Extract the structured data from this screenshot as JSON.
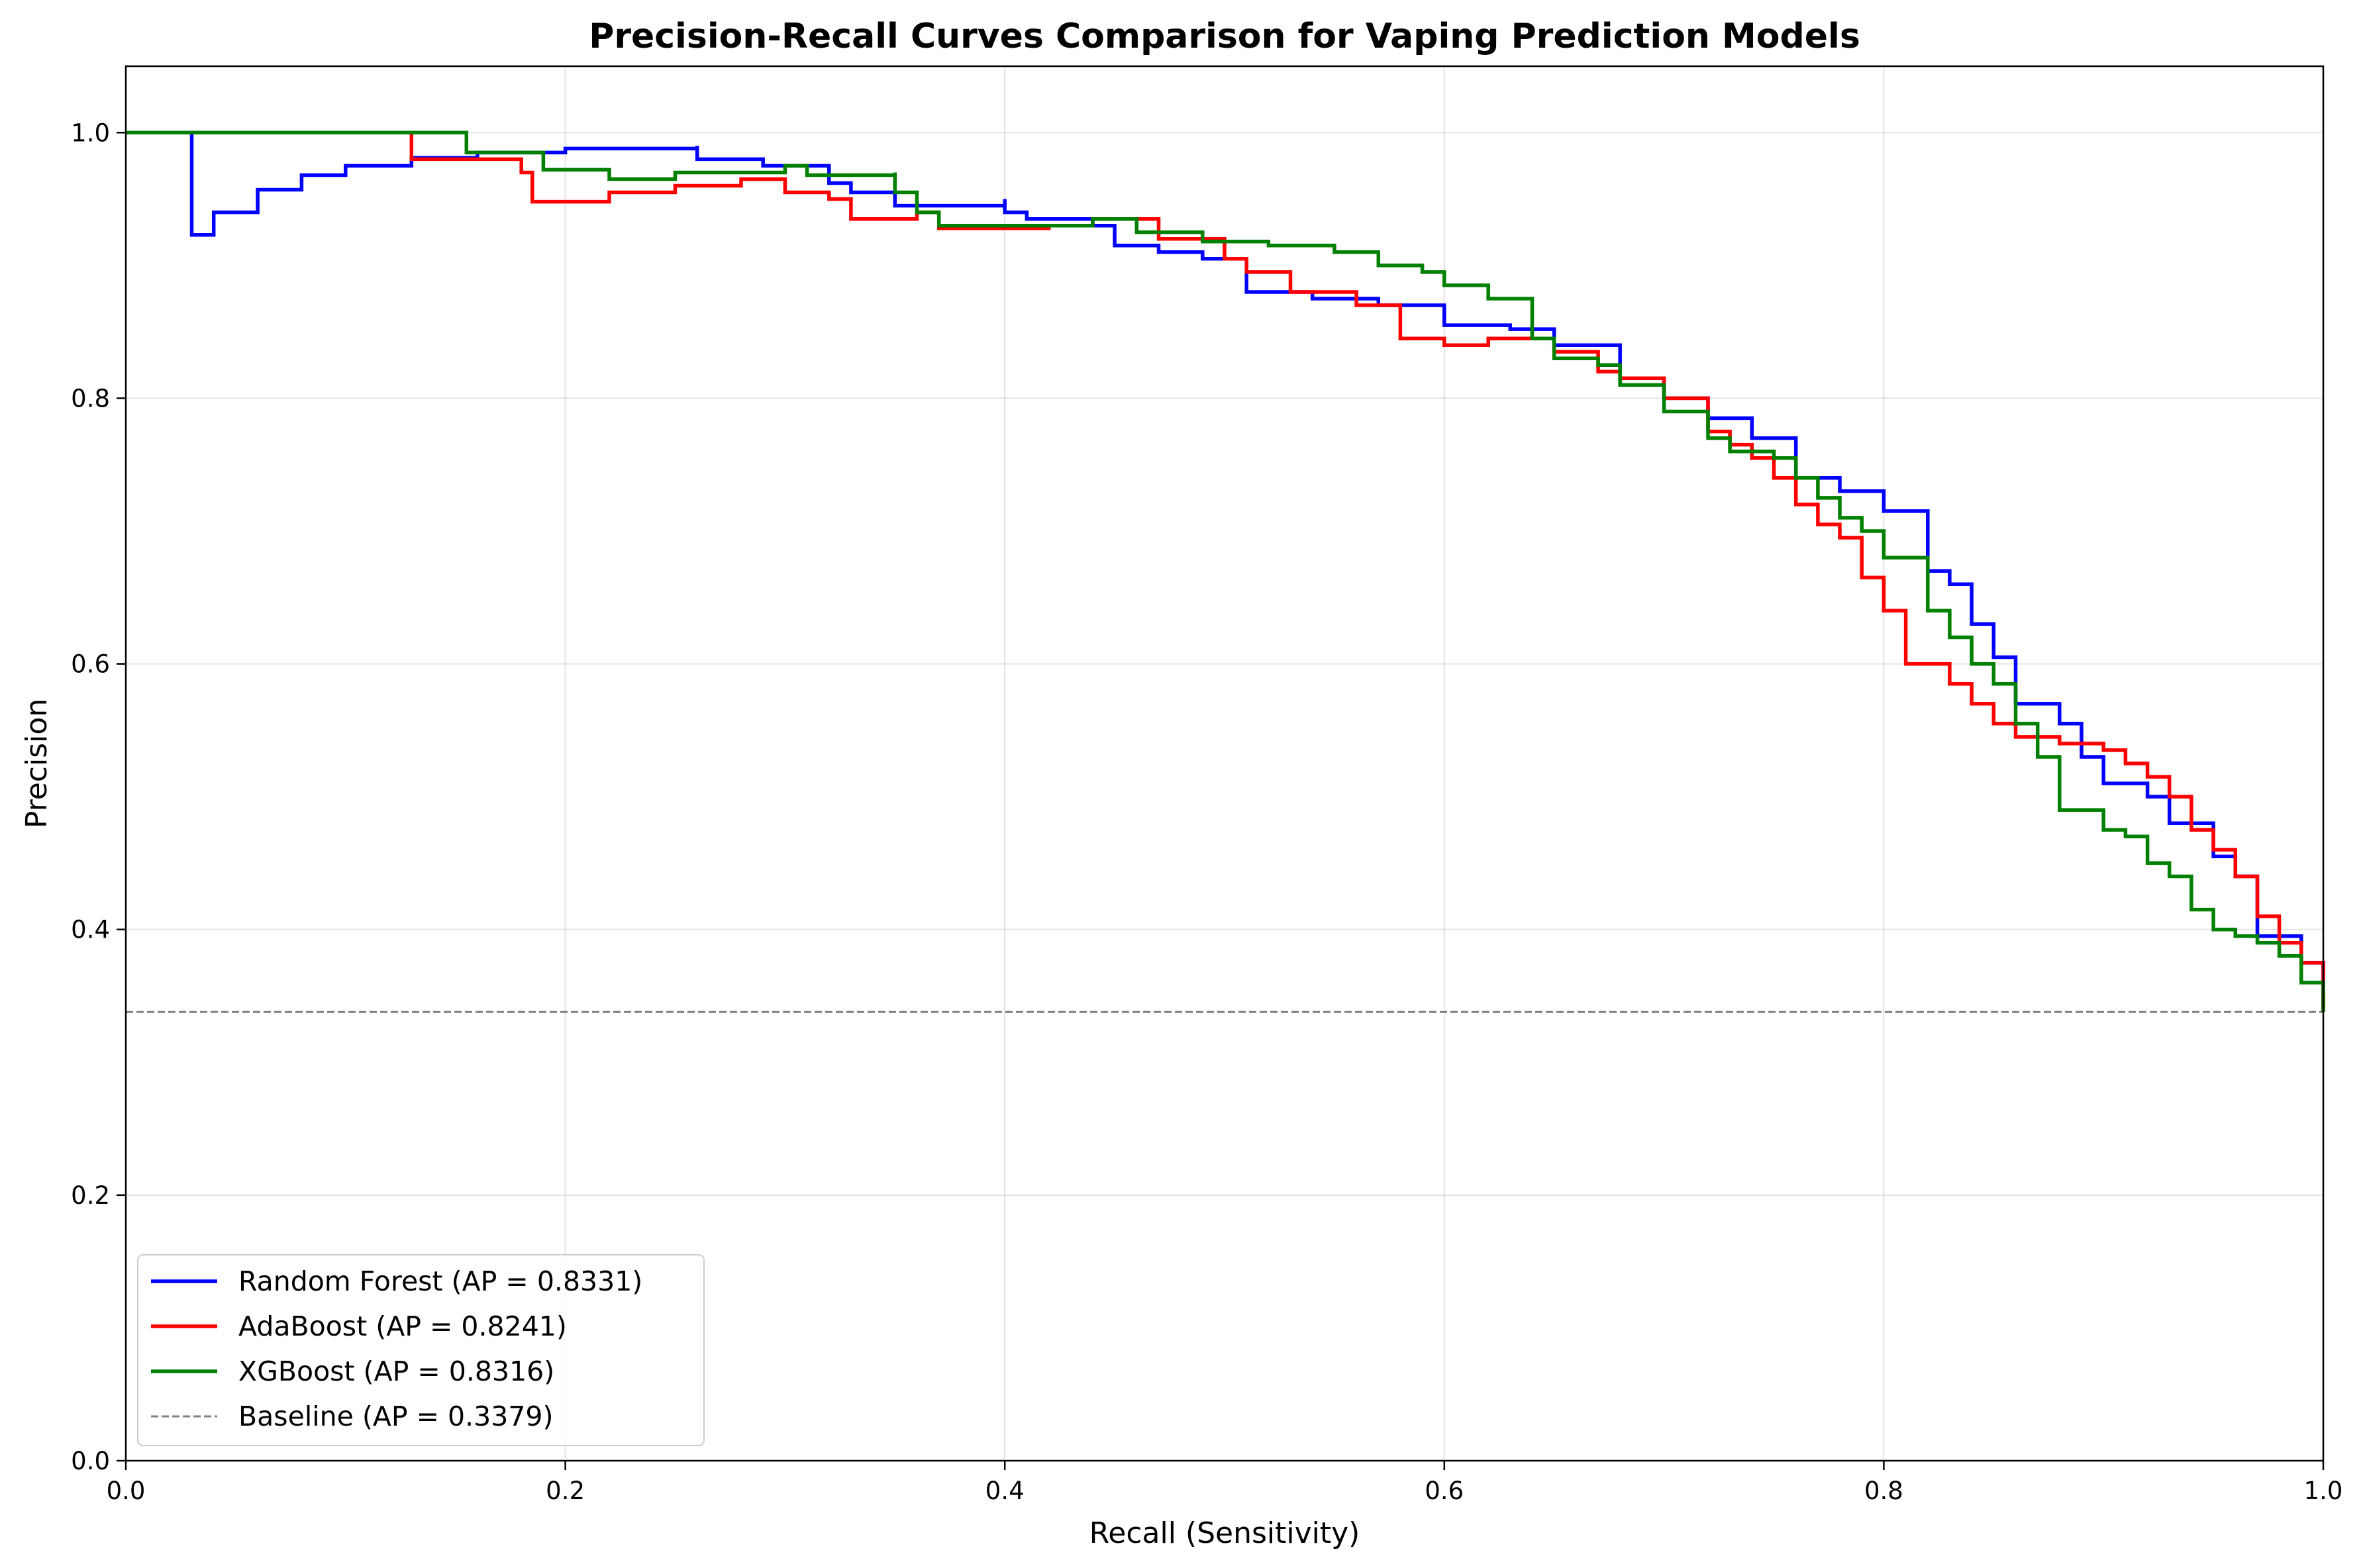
{
  "chart_data": {
    "type": "line",
    "title": "Precision-Recall Curves Comparison for Vaping Prediction Models",
    "xlabel": "Recall (Sensitivity)",
    "ylabel": "Precision",
    "xlim": [
      0.0,
      1.0
    ],
    "ylim": [
      0.0,
      1.05
    ],
    "xticks": [
      "0.0",
      "0.2",
      "0.4",
      "0.6",
      "0.8",
      "1.0"
    ],
    "yticks": [
      "0.0",
      "0.2",
      "0.4",
      "0.6",
      "0.8",
      "1.0"
    ],
    "grid": true,
    "legend_position": "lower-left",
    "series": [
      {
        "name": "Random Forest (AP = 0.8331)",
        "color": "#0000ff",
        "style": "step",
        "points": [
          [
            0.0,
            1.0
          ],
          [
            0.03,
            1.0
          ],
          [
            0.03,
            0.923
          ],
          [
            0.04,
            0.94
          ],
          [
            0.06,
            0.957
          ],
          [
            0.08,
            0.968
          ],
          [
            0.1,
            0.975
          ],
          [
            0.13,
            0.981
          ],
          [
            0.16,
            0.985
          ],
          [
            0.2,
            0.988
          ],
          [
            0.26,
            0.99
          ],
          [
            0.26,
            0.98
          ],
          [
            0.29,
            0.98
          ],
          [
            0.29,
            0.975
          ],
          [
            0.32,
            0.975
          ],
          [
            0.32,
            0.962
          ],
          [
            0.33,
            0.962
          ],
          [
            0.33,
            0.955
          ],
          [
            0.35,
            0.955
          ],
          [
            0.35,
            0.945
          ],
          [
            0.37,
            0.945
          ],
          [
            0.4,
            0.95
          ],
          [
            0.4,
            0.94
          ],
          [
            0.41,
            0.935
          ],
          [
            0.44,
            0.93
          ],
          [
            0.45,
            0.915
          ],
          [
            0.47,
            0.91
          ],
          [
            0.49,
            0.905
          ],
          [
            0.51,
            0.902
          ],
          [
            0.51,
            0.88
          ],
          [
            0.54,
            0.875
          ],
          [
            0.57,
            0.87
          ],
          [
            0.6,
            0.855
          ],
          [
            0.63,
            0.852
          ],
          [
            0.65,
            0.84
          ],
          [
            0.68,
            0.815
          ],
          [
            0.7,
            0.8
          ],
          [
            0.72,
            0.785
          ],
          [
            0.74,
            0.77
          ],
          [
            0.76,
            0.74
          ],
          [
            0.78,
            0.73
          ],
          [
            0.8,
            0.715
          ],
          [
            0.82,
            0.69
          ],
          [
            0.82,
            0.67
          ],
          [
            0.83,
            0.66
          ],
          [
            0.84,
            0.63
          ],
          [
            0.85,
            0.605
          ],
          [
            0.86,
            0.57
          ],
          [
            0.88,
            0.555
          ],
          [
            0.89,
            0.53
          ],
          [
            0.9,
            0.51
          ],
          [
            0.92,
            0.5
          ],
          [
            0.93,
            0.48
          ],
          [
            0.95,
            0.455
          ],
          [
            0.96,
            0.44
          ],
          [
            0.97,
            0.42
          ],
          [
            0.97,
            0.395
          ],
          [
            0.99,
            0.375
          ],
          [
            1.0,
            0.35
          ],
          [
            1.0,
            0.338
          ]
        ]
      },
      {
        "name": "AdaBoost (AP = 0.8241)",
        "color": "#ff0000",
        "style": "step",
        "points": [
          [
            0.0,
            1.0
          ],
          [
            0.13,
            1.0
          ],
          [
            0.13,
            0.98
          ],
          [
            0.18,
            0.98
          ],
          [
            0.18,
            0.97
          ],
          [
            0.185,
            0.97
          ],
          [
            0.185,
            0.948
          ],
          [
            0.22,
            0.955
          ],
          [
            0.25,
            0.96
          ],
          [
            0.28,
            0.965
          ],
          [
            0.3,
            0.96
          ],
          [
            0.3,
            0.955
          ],
          [
            0.32,
            0.95
          ],
          [
            0.33,
            0.945
          ],
          [
            0.33,
            0.935
          ],
          [
            0.36,
            0.94
          ],
          [
            0.37,
            0.928
          ],
          [
            0.4,
            0.928
          ],
          [
            0.42,
            0.93
          ],
          [
            0.44,
            0.935
          ],
          [
            0.47,
            0.935
          ],
          [
            0.47,
            0.92
          ],
          [
            0.5,
            0.905
          ],
          [
            0.51,
            0.895
          ],
          [
            0.53,
            0.88
          ],
          [
            0.56,
            0.87
          ],
          [
            0.58,
            0.865
          ],
          [
            0.58,
            0.845
          ],
          [
            0.6,
            0.84
          ],
          [
            0.62,
            0.845
          ],
          [
            0.64,
            0.845
          ],
          [
            0.65,
            0.835
          ],
          [
            0.67,
            0.82
          ],
          [
            0.68,
            0.815
          ],
          [
            0.7,
            0.8
          ],
          [
            0.72,
            0.775
          ],
          [
            0.73,
            0.765
          ],
          [
            0.74,
            0.755
          ],
          [
            0.75,
            0.74
          ],
          [
            0.76,
            0.72
          ],
          [
            0.77,
            0.705
          ],
          [
            0.78,
            0.695
          ],
          [
            0.79,
            0.68
          ],
          [
            0.79,
            0.665
          ],
          [
            0.8,
            0.64
          ],
          [
            0.81,
            0.63
          ],
          [
            0.81,
            0.6
          ],
          [
            0.83,
            0.585
          ],
          [
            0.84,
            0.57
          ],
          [
            0.85,
            0.555
          ],
          [
            0.86,
            0.545
          ],
          [
            0.88,
            0.54
          ],
          [
            0.9,
            0.535
          ],
          [
            0.91,
            0.525
          ],
          [
            0.92,
            0.515
          ],
          [
            0.93,
            0.5
          ],
          [
            0.94,
            0.475
          ],
          [
            0.95,
            0.46
          ],
          [
            0.96,
            0.44
          ],
          [
            0.97,
            0.44
          ],
          [
            0.97,
            0.41
          ],
          [
            0.98,
            0.39
          ],
          [
            0.99,
            0.375
          ],
          [
            1.0,
            0.355
          ],
          [
            1.0,
            0.338
          ]
        ]
      },
      {
        "name": "XGBoost (AP = 0.8316)",
        "color": "#008000",
        "style": "step",
        "points": [
          [
            0.0,
            1.0
          ],
          [
            0.155,
            1.0
          ],
          [
            0.155,
            0.985
          ],
          [
            0.19,
            0.985
          ],
          [
            0.19,
            0.972
          ],
          [
            0.21,
            0.972
          ],
          [
            0.22,
            0.965
          ],
          [
            0.25,
            0.97
          ],
          [
            0.3,
            0.975
          ],
          [
            0.31,
            0.968
          ],
          [
            0.35,
            0.97
          ],
          [
            0.35,
            0.955
          ],
          [
            0.36,
            0.94
          ],
          [
            0.37,
            0.93
          ],
          [
            0.4,
            0.93
          ],
          [
            0.44,
            0.935
          ],
          [
            0.46,
            0.925
          ],
          [
            0.49,
            0.918
          ],
          [
            0.52,
            0.915
          ],
          [
            0.55,
            0.91
          ],
          [
            0.57,
            0.9
          ],
          [
            0.59,
            0.895
          ],
          [
            0.6,
            0.885
          ],
          [
            0.62,
            0.875
          ],
          [
            0.64,
            0.845
          ],
          [
            0.65,
            0.83
          ],
          [
            0.67,
            0.825
          ],
          [
            0.68,
            0.81
          ],
          [
            0.7,
            0.79
          ],
          [
            0.72,
            0.77
          ],
          [
            0.73,
            0.76
          ],
          [
            0.75,
            0.755
          ],
          [
            0.76,
            0.74
          ],
          [
            0.77,
            0.725
          ],
          [
            0.78,
            0.71
          ],
          [
            0.79,
            0.7
          ],
          [
            0.8,
            0.68
          ],
          [
            0.82,
            0.67
          ],
          [
            0.82,
            0.64
          ],
          [
            0.83,
            0.62
          ],
          [
            0.84,
            0.6
          ],
          [
            0.85,
            0.585
          ],
          [
            0.86,
            0.555
          ],
          [
            0.87,
            0.53
          ],
          [
            0.88,
            0.49
          ],
          [
            0.9,
            0.475
          ],
          [
            0.91,
            0.47
          ],
          [
            0.92,
            0.45
          ],
          [
            0.93,
            0.44
          ],
          [
            0.94,
            0.415
          ],
          [
            0.95,
            0.4
          ],
          [
            0.96,
            0.395
          ],
          [
            0.97,
            0.39
          ],
          [
            0.98,
            0.38
          ],
          [
            0.99,
            0.36
          ],
          [
            1.0,
            0.345
          ],
          [
            1.0,
            0.338
          ]
        ]
      },
      {
        "name": "Baseline (AP = 0.3379)",
        "color": "#808080",
        "style": "dashed",
        "points": [
          [
            0.0,
            0.3379
          ],
          [
            1.0,
            0.3379
          ]
        ]
      }
    ]
  }
}
